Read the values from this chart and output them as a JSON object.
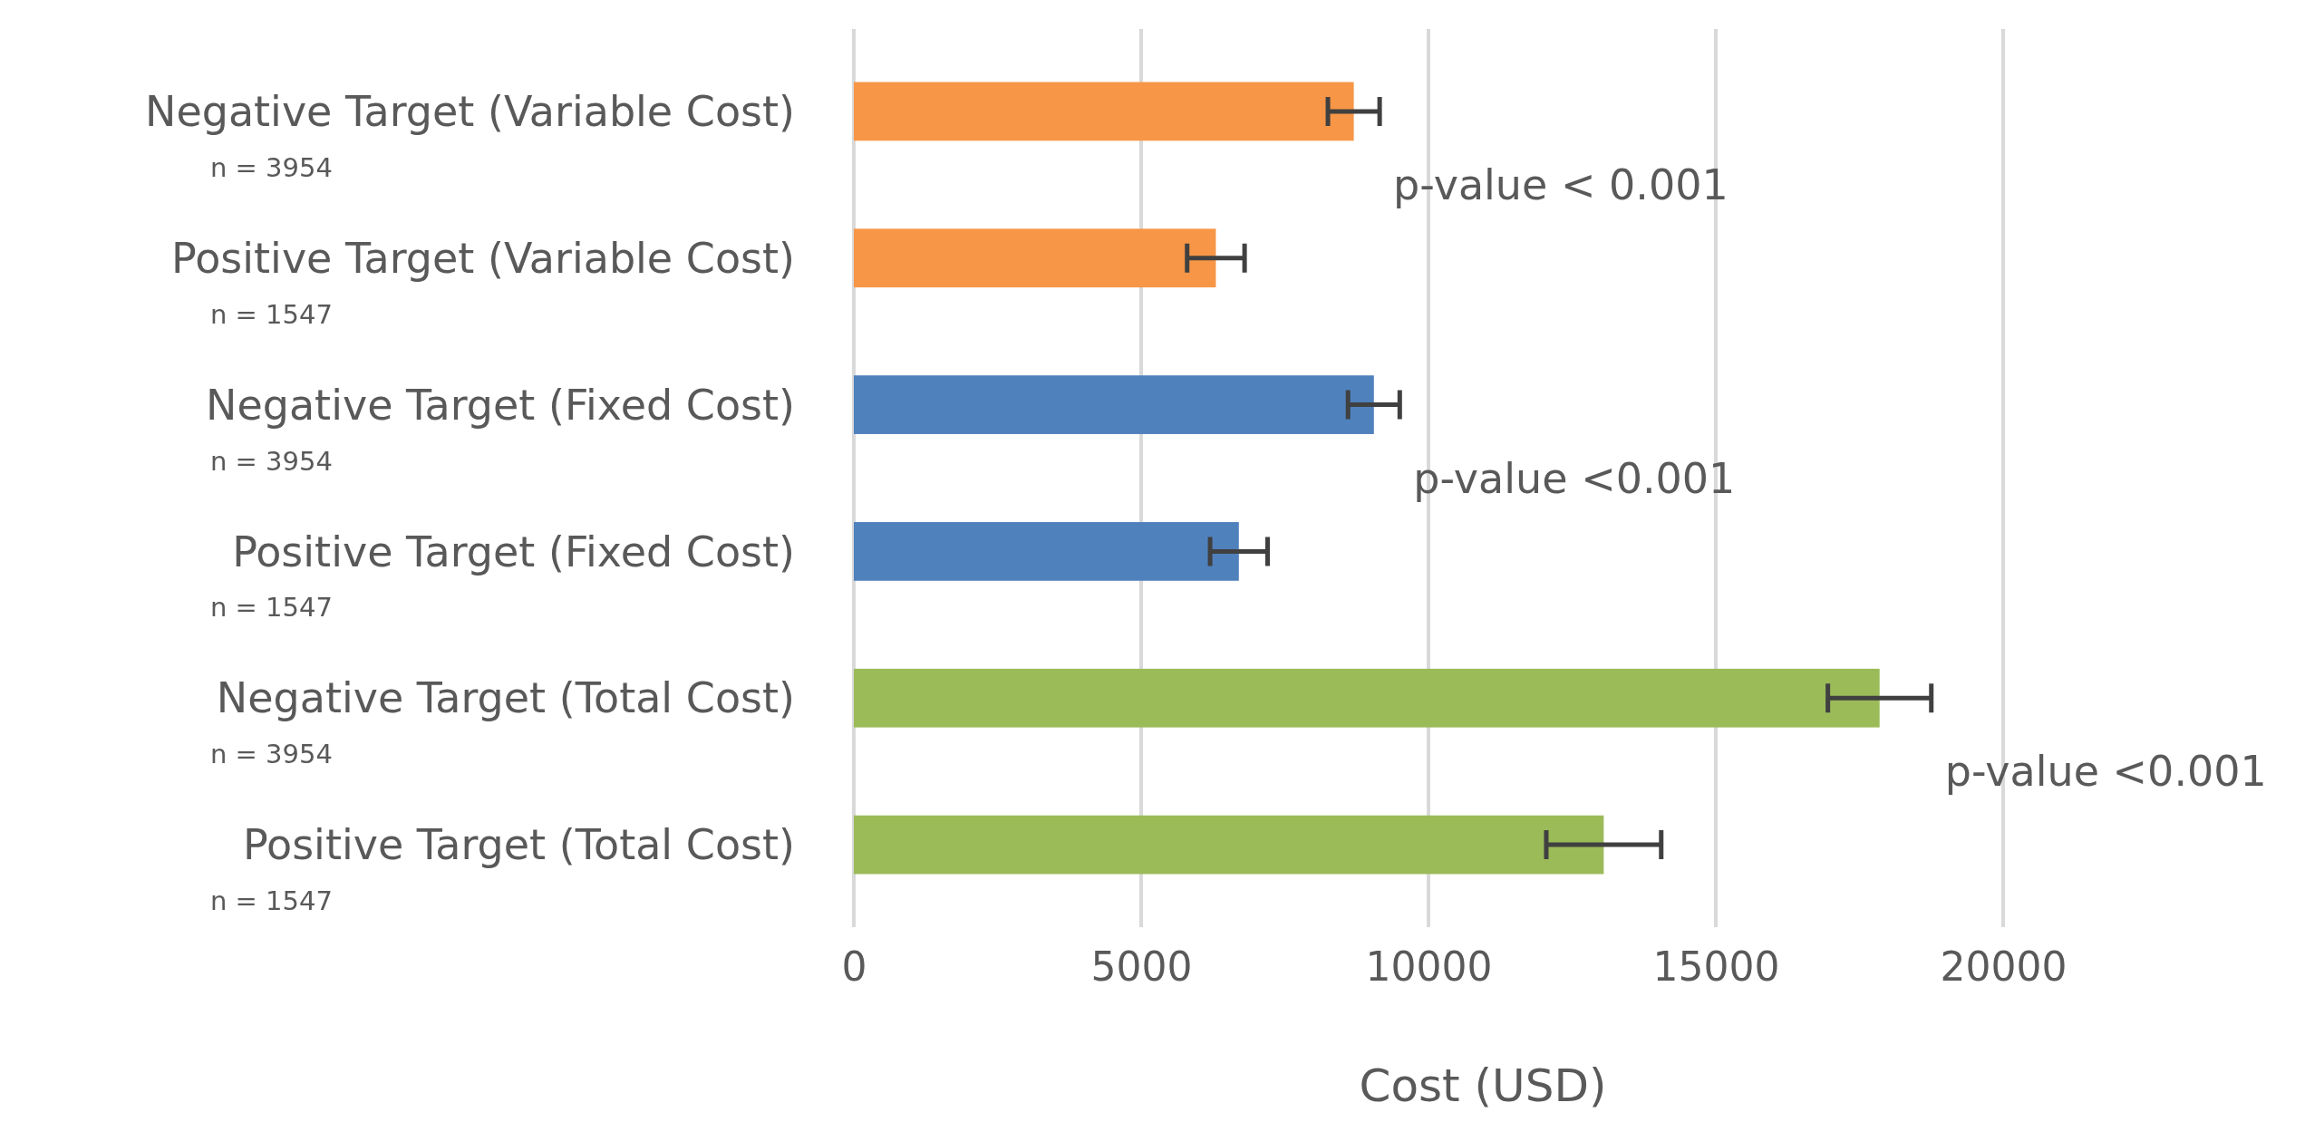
{
  "chart_data": {
    "type": "bar",
    "orientation": "horizontal",
    "xlabel": "Cost (USD)",
    "categories": [
      "Negative Target (Variable Cost)\nn = 3954",
      "Positive Target (Variable Cost)\nn = 1547",
      "Negative Target (Fixed Cost)\nn = 3954",
      "Positive Target (Fixed Cost)\nn = 1547",
      "Negative Target (Total Cost)\nn = 3954",
      "Positive Target (Total Cost)\nn = 1547"
    ],
    "values": [
      8700,
      6300,
      9050,
      6700,
      17850,
      13050
    ],
    "errors": [
      450,
      500,
      450,
      500,
      900,
      1000
    ],
    "colors": [
      "#f79646",
      "#f79646",
      "#4f81bd",
      "#4f81bd",
      "#9bbb59",
      "#9bbb59"
    ],
    "xlim": [
      0,
      20000
    ],
    "xticks": [
      0,
      5000,
      10000,
      15000,
      20000
    ],
    "grid": "x",
    "annotations": [
      "p-value < 0.001",
      "p-value <0.001",
      "p-value <0.001"
    ]
  }
}
